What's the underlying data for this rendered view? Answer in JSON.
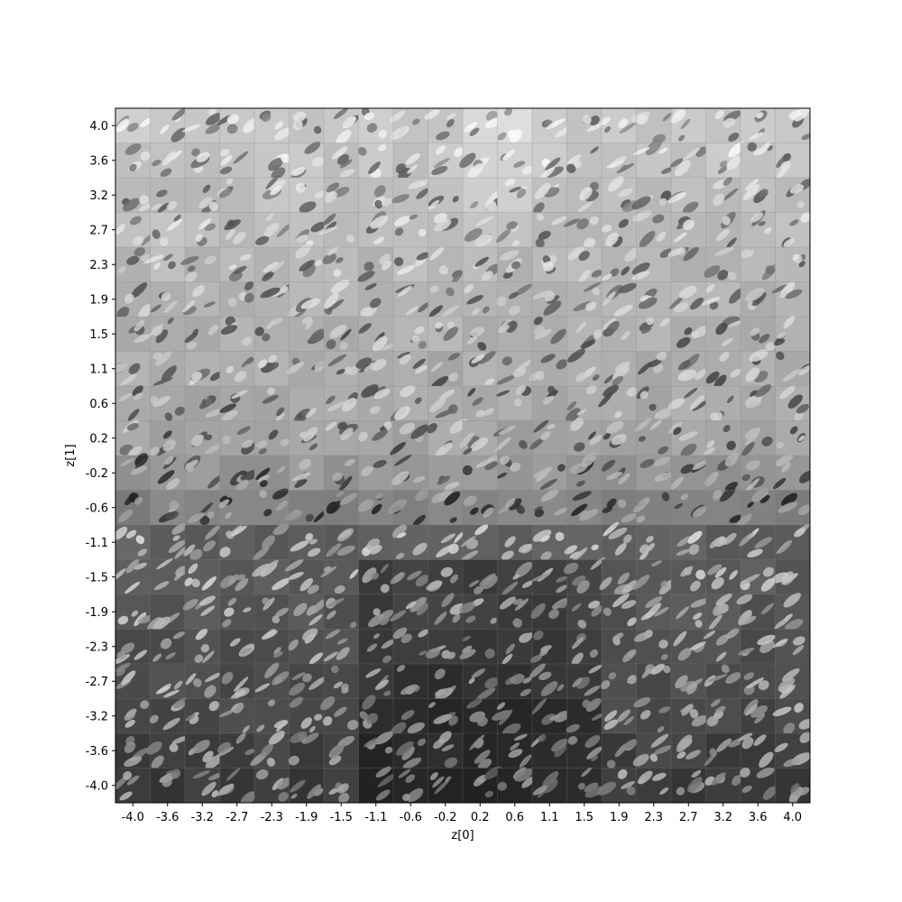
{
  "chart_data": {
    "type": "heatmap",
    "description": "latent space image manifold grid",
    "title": "",
    "xlabel": "z[0]",
    "ylabel": "z[1]",
    "grid_size": 20,
    "xlim": [
      -4.2,
      4.2
    ],
    "ylim": [
      -4.2,
      4.2
    ],
    "x_ticks": [
      "-4.0",
      "-3.6",
      "-3.2",
      "-2.7",
      "-2.3",
      "-1.9",
      "-1.5",
      "-1.1",
      "-0.6",
      "-0.2",
      "0.2",
      "0.6",
      "1.1",
      "1.5",
      "1.9",
      "2.3",
      "2.7",
      "3.2",
      "3.6",
      "4.0"
    ],
    "y_ticks": [
      "4.0",
      "3.6",
      "3.2",
      "2.7",
      "2.3",
      "1.9",
      "1.5",
      "1.1",
      "0.6",
      "0.2",
      "-0.2",
      "-0.6",
      "-1.1",
      "-1.5",
      "-1.9",
      "-2.3",
      "-2.7",
      "-3.2",
      "-3.6",
      "-4.0"
    ],
    "colormap": "gray"
  }
}
